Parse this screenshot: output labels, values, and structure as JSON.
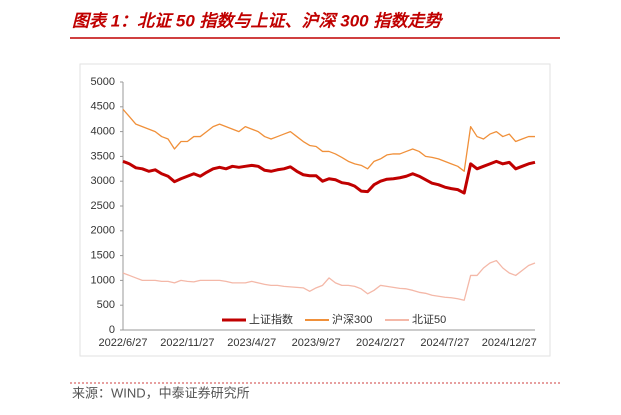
{
  "chart_data": {
    "type": "line",
    "title": "图表 1：北证 50 指数与上证、沪深 300 指数走势",
    "source": "来源：WIND，中泰证券研究所",
    "categories": [
      "2022/6/27",
      null,
      null,
      null,
      null,
      null,
      null,
      null,
      null,
      null,
      "2022/11/27",
      null,
      null,
      null,
      null,
      null,
      null,
      null,
      null,
      null,
      "2023/4/27",
      null,
      null,
      null,
      null,
      null,
      null,
      null,
      null,
      null,
      "2023/9/27",
      null,
      null,
      null,
      null,
      null,
      null,
      null,
      null,
      null,
      "2024/2/27",
      null,
      null,
      null,
      null,
      null,
      null,
      null,
      null,
      null,
      "2024/7/27",
      null,
      null,
      null,
      null,
      null,
      null,
      null,
      null,
      null,
      "2024/12/27",
      null,
      null,
      null,
      null
    ],
    "series": [
      {
        "name": "上证指数",
        "color": "#c00000",
        "values": [
          3400,
          3350,
          3270,
          3250,
          3200,
          3230,
          3150,
          3100,
          2990,
          3050,
          3100,
          3150,
          3100,
          3180,
          3250,
          3280,
          3250,
          3300,
          3280,
          3300,
          3320,
          3300,
          3220,
          3200,
          3230,
          3250,
          3290,
          3200,
          3130,
          3110,
          3110,
          3000,
          3050,
          3030,
          2970,
          2950,
          2900,
          2800,
          2790,
          2930,
          3000,
          3040,
          3050,
          3070,
          3100,
          3150,
          3100,
          3030,
          2960,
          2930,
          2880,
          2850,
          2830,
          2760,
          3350,
          3250,
          3300,
          3350,
          3400,
          3350,
          3380,
          3250,
          3300,
          3350,
          3380
        ]
      },
      {
        "name": "沪深300",
        "color": "#f0903a",
        "values": [
          4450,
          4300,
          4150,
          4100,
          4050,
          4000,
          3900,
          3850,
          3650,
          3800,
          3800,
          3900,
          3900,
          4000,
          4100,
          4150,
          4100,
          4050,
          4000,
          4100,
          4050,
          4000,
          3900,
          3850,
          3900,
          3950,
          4000,
          3900,
          3800,
          3720,
          3700,
          3600,
          3600,
          3550,
          3480,
          3400,
          3350,
          3320,
          3250,
          3400,
          3450,
          3530,
          3550,
          3550,
          3600,
          3650,
          3600,
          3500,
          3480,
          3450,
          3400,
          3350,
          3300,
          3200,
          4100,
          3900,
          3850,
          3950,
          4000,
          3900,
          3950,
          3800,
          3850,
          3900,
          3900
        ]
      },
      {
        "name": "北证50",
        "color": "#f4b8a8",
        "values": [
          1150,
          1100,
          1050,
          1000,
          1000,
          1000,
          980,
          980,
          950,
          1000,
          980,
          970,
          1000,
          1000,
          1000,
          1000,
          980,
          950,
          950,
          950,
          980,
          950,
          920,
          900,
          900,
          880,
          870,
          860,
          850,
          780,
          850,
          900,
          1050,
          950,
          900,
          900,
          880,
          830,
          730,
          800,
          900,
          880,
          860,
          840,
          830,
          800,
          760,
          740,
          700,
          680,
          660,
          650,
          630,
          600,
          1100,
          1100,
          1250,
          1350,
          1400,
          1250,
          1150,
          1100,
          1200,
          1300,
          1350
        ]
      }
    ],
    "ylim": [
      0,
      5000
    ],
    "yticks": [
      0,
      500,
      1000,
      1500,
      2000,
      2500,
      3000,
      3500,
      4000,
      4500,
      5000
    ]
  }
}
